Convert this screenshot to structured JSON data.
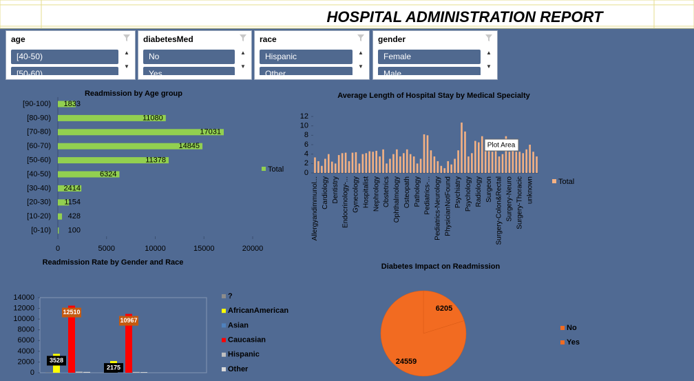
{
  "header": {
    "title": "HOSPITAL ADMINISTRATION REPORT"
  },
  "slicers": [
    {
      "title": "age",
      "items": [
        "[40-50)",
        "[50-60)"
      ]
    },
    {
      "title": "diabetesMed",
      "items": [
        "No",
        "Yes"
      ]
    },
    {
      "title": "race",
      "items": [
        "Hispanic",
        "Other"
      ]
    },
    {
      "title": "gender",
      "items": [
        "Female",
        "Male"
      ]
    }
  ],
  "chart_data": [
    {
      "type": "hbar",
      "title": "Readmission by Age group",
      "categories": [
        "[90-100)",
        "[80-90)",
        "[70-80)",
        "[60-70)",
        "[50-60)",
        "[40-50)",
        "[30-40)",
        "[20-30)",
        "[10-20)",
        "[0-10)"
      ],
      "series": [
        {
          "name": "Total",
          "color": "#92d050",
          "values": [
            1833,
            11080,
            17031,
            14845,
            11378,
            6324,
            2414,
            1154,
            428,
            100
          ]
        }
      ],
      "xlim": [
        0,
        20000
      ],
      "xticks": [
        0,
        5000,
        10000,
        15000,
        20000
      ]
    },
    {
      "type": "bar",
      "title": "Average Length of Hospital Stay by Medical Specialty",
      "categories": [
        "Allergyandimmunol...",
        null,
        null,
        "Cardiology",
        null,
        null,
        "Dentistry",
        null,
        null,
        "Endocrinology-...",
        null,
        null,
        "Gynecology",
        null,
        null,
        "Hospitalist",
        null,
        null,
        "Nephrology",
        null,
        null,
        "Obstetrics",
        null,
        null,
        "Ophthalmology",
        null,
        null,
        "Osteopath",
        null,
        null,
        "Pathology",
        null,
        null,
        "Pediatrics-...",
        null,
        null,
        "Pediatrics-Neurology",
        null,
        null,
        "PhysicianNotFound",
        null,
        null,
        "Psychiatry",
        null,
        null,
        "Psychology",
        null,
        null,
        "Radiology",
        null,
        null,
        "Surgeon",
        null,
        null,
        "Surgery-Colon&Rectal",
        null,
        null,
        "Surgery-Neuro",
        null,
        null,
        "Surgery-Thoracic",
        null,
        null,
        "unknown",
        null,
        null
      ],
      "series": [
        {
          "name": "Total",
          "color": "#f4b183",
          "values": [
            3.3,
            2.5,
            1.5,
            3,
            4,
            2.4,
            2,
            3.8,
            4.2,
            4.3,
            2.5,
            4.3,
            4.4,
            2,
            4,
            4.2,
            4.6,
            4.5,
            4.7,
            3.5,
            5,
            2,
            3,
            4,
            5,
            3.5,
            4.2,
            5,
            4,
            3.5,
            2,
            3,
            8.2,
            8,
            4.8,
            3.5,
            2.5,
            1.5,
            1,
            2.5,
            1.8,
            3,
            4.8,
            10.7,
            8.8,
            3.5,
            4.2,
            6.8,
            6.5,
            7.8,
            7,
            6.7,
            4.5,
            6,
            3.5,
            4,
            7.8,
            4.5,
            4.8,
            4.5,
            4.5,
            4.2,
            5,
            6,
            4.5,
            3.5
          ]
        }
      ],
      "ylim": [
        0,
        12
      ],
      "yticks": [
        0,
        2,
        4,
        6,
        8,
        10,
        12
      ],
      "annotation": "Plot Area"
    },
    {
      "type": "column",
      "title": "Readmission Rate by Gender and Race",
      "categories": [
        null,
        null
      ],
      "series": [
        {
          "name": "?",
          "color": "#8c8c8c",
          "values": [
            60,
            50
          ]
        },
        {
          "name": "AfricanAmerican",
          "color": "#ffff00",
          "values": [
            3528,
            2175
          ],
          "value_labels": [
            "3528",
            "2175"
          ],
          "label_color": "#000000"
        },
        {
          "name": "Asian",
          "color": "#4f81bd",
          "values": [
            80,
            70
          ]
        },
        {
          "name": "Caucasian",
          "color": "#ff0000",
          "values": [
            12510,
            10967
          ],
          "value_labels": [
            "12510",
            "10967"
          ],
          "label_color": "#c55a11"
        },
        {
          "name": "Hispanic",
          "color": "#c0c0c0",
          "values": [
            200,
            150
          ]
        },
        {
          "name": "Other",
          "color": "#d9d9d9",
          "values": [
            150,
            120
          ]
        }
      ],
      "ylim": [
        0,
        14000
      ],
      "yticks": [
        0,
        2000,
        4000,
        6000,
        8000,
        10000,
        12000,
        14000
      ]
    },
    {
      "type": "pie",
      "title": "Diabetes Impact on Readmission",
      "categories": [
        "No",
        "Yes"
      ],
      "values": [
        6205,
        24559
      ],
      "colors": [
        "#f26b21",
        "#f26b21"
      ]
    }
  ]
}
